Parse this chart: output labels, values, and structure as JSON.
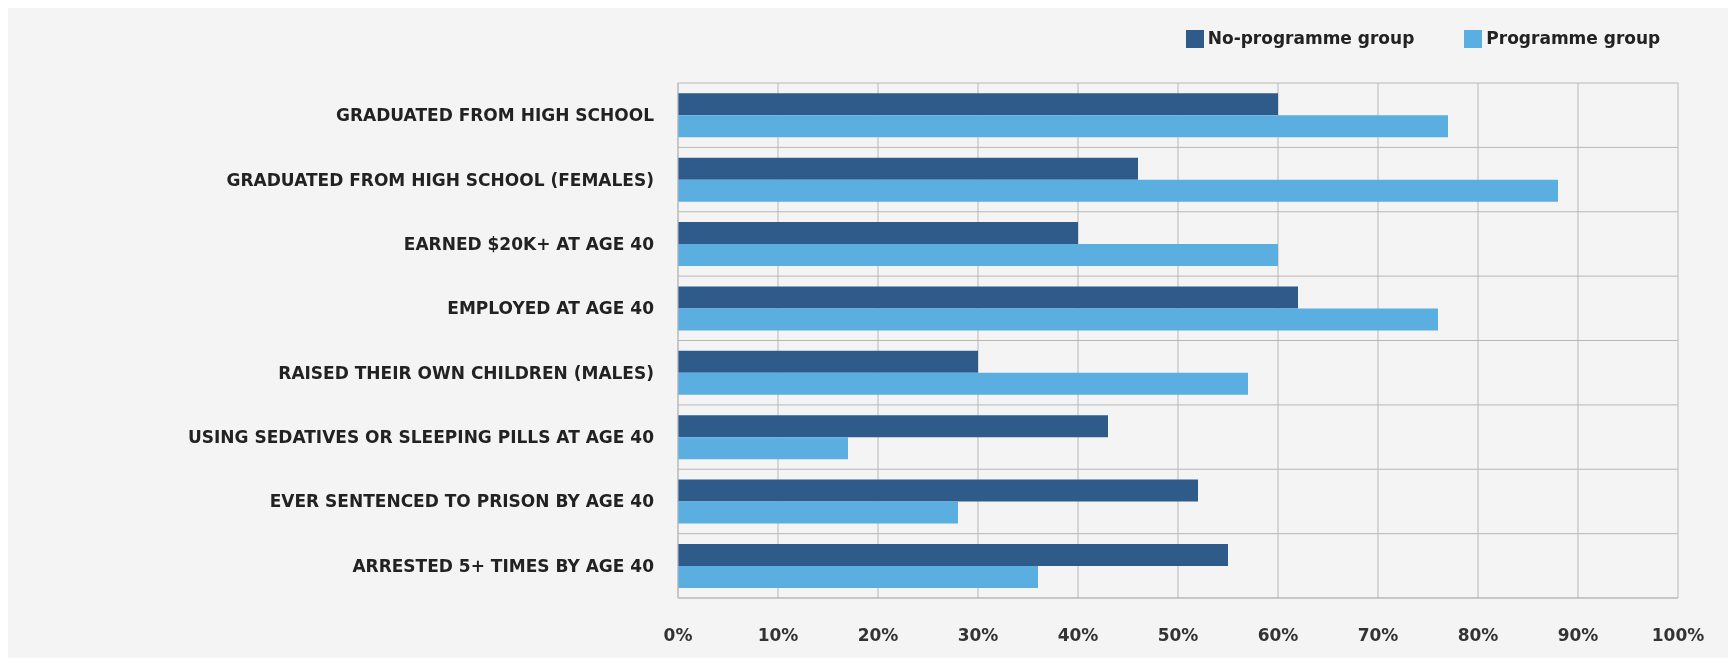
{
  "chart_data": {
    "type": "bar",
    "orientation": "horizontal",
    "categories": [
      "GRADUATED FROM HIGH SCHOOL",
      "GRADUATED FROM HIGH SCHOOL (FEMALES)",
      "EARNED $20K+ AT AGE 40",
      "EMPLOYED AT AGE 40",
      "RAISED THEIR OWN CHILDREN (MALES)",
      "USING SEDATIVES OR SLEEPING PILLS AT AGE 40",
      "EVER SENTENCED TO PRISON BY AGE 40",
      "ARRESTED 5+ TIMES BY AGE 40"
    ],
    "series": [
      {
        "name": "No-programme group",
        "color": "#2f5b8a",
        "values": [
          60,
          46,
          40,
          62,
          30,
          43,
          52,
          55
        ]
      },
      {
        "name": "Programme group",
        "color": "#5aaee0",
        "values": [
          77,
          88,
          60,
          76,
          57,
          17,
          28,
          36
        ]
      }
    ],
    "xlim": [
      0,
      100
    ],
    "xticks": [
      {
        "value": 0,
        "label": "0%"
      },
      {
        "value": 10,
        "label": "10%"
      },
      {
        "value": 20,
        "label": "20%"
      },
      {
        "value": 30,
        "label": "30%"
      },
      {
        "value": 40,
        "label": "40%"
      },
      {
        "value": 50,
        "label": "50%"
      },
      {
        "value": 60,
        "label": "60%"
      },
      {
        "value": 70,
        "label": "70%"
      },
      {
        "value": 80,
        "label": "80%"
      },
      {
        "value": 90,
        "label": "90%"
      },
      {
        "value": 100,
        "label": "100%"
      }
    ],
    "grid": true,
    "legend": "top"
  }
}
